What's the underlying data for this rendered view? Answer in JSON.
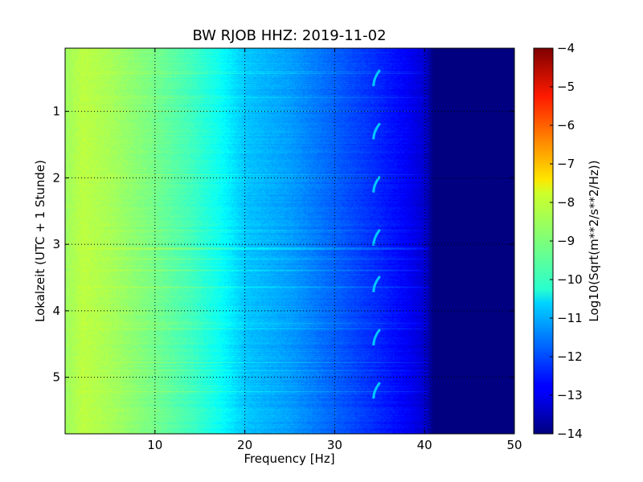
{
  "chart_data": {
    "type": "heatmap",
    "title": "BW RJOB HHZ: 2019-11-02",
    "xlabel": "Frequency [Hz]",
    "ylabel": "Lokalzeit (UTC + 1 Stunde)",
    "xlim": [
      0,
      50
    ],
    "ylim": [
      5.85,
      0.05
    ],
    "x_ticks": [
      10,
      20,
      30,
      40,
      50
    ],
    "y_ticks": [
      1,
      2,
      3,
      4,
      5
    ],
    "grid": true,
    "colormap": "jet",
    "colorbar": {
      "label": "Log10(Sqrt(m**2/s**2/Hz))",
      "range": [
        -14,
        -4
      ],
      "ticks": [
        -4,
        -5,
        -6,
        -7,
        -8,
        -9,
        -10,
        -11,
        -12,
        -13,
        -14
      ]
    },
    "approx_profile": {
      "frequency_hz": [
        0,
        2,
        5,
        10,
        14,
        17,
        20,
        25,
        30,
        35,
        38,
        40,
        41,
        50
      ],
      "log10_amplitude": [
        -8.7,
        -8.4,
        -8.6,
        -9.1,
        -9.6,
        -10.1,
        -10.8,
        -11.2,
        -11.8,
        -12.4,
        -12.8,
        -13.2,
        -14,
        -14
      ]
    },
    "features": [
      {
        "frequency_hz": 34.5,
        "times_h": [
          0.5,
          1.3,
          2.1,
          2.9,
          3.6,
          4.4,
          5.2
        ],
        "value": -10.8
      }
    ]
  }
}
